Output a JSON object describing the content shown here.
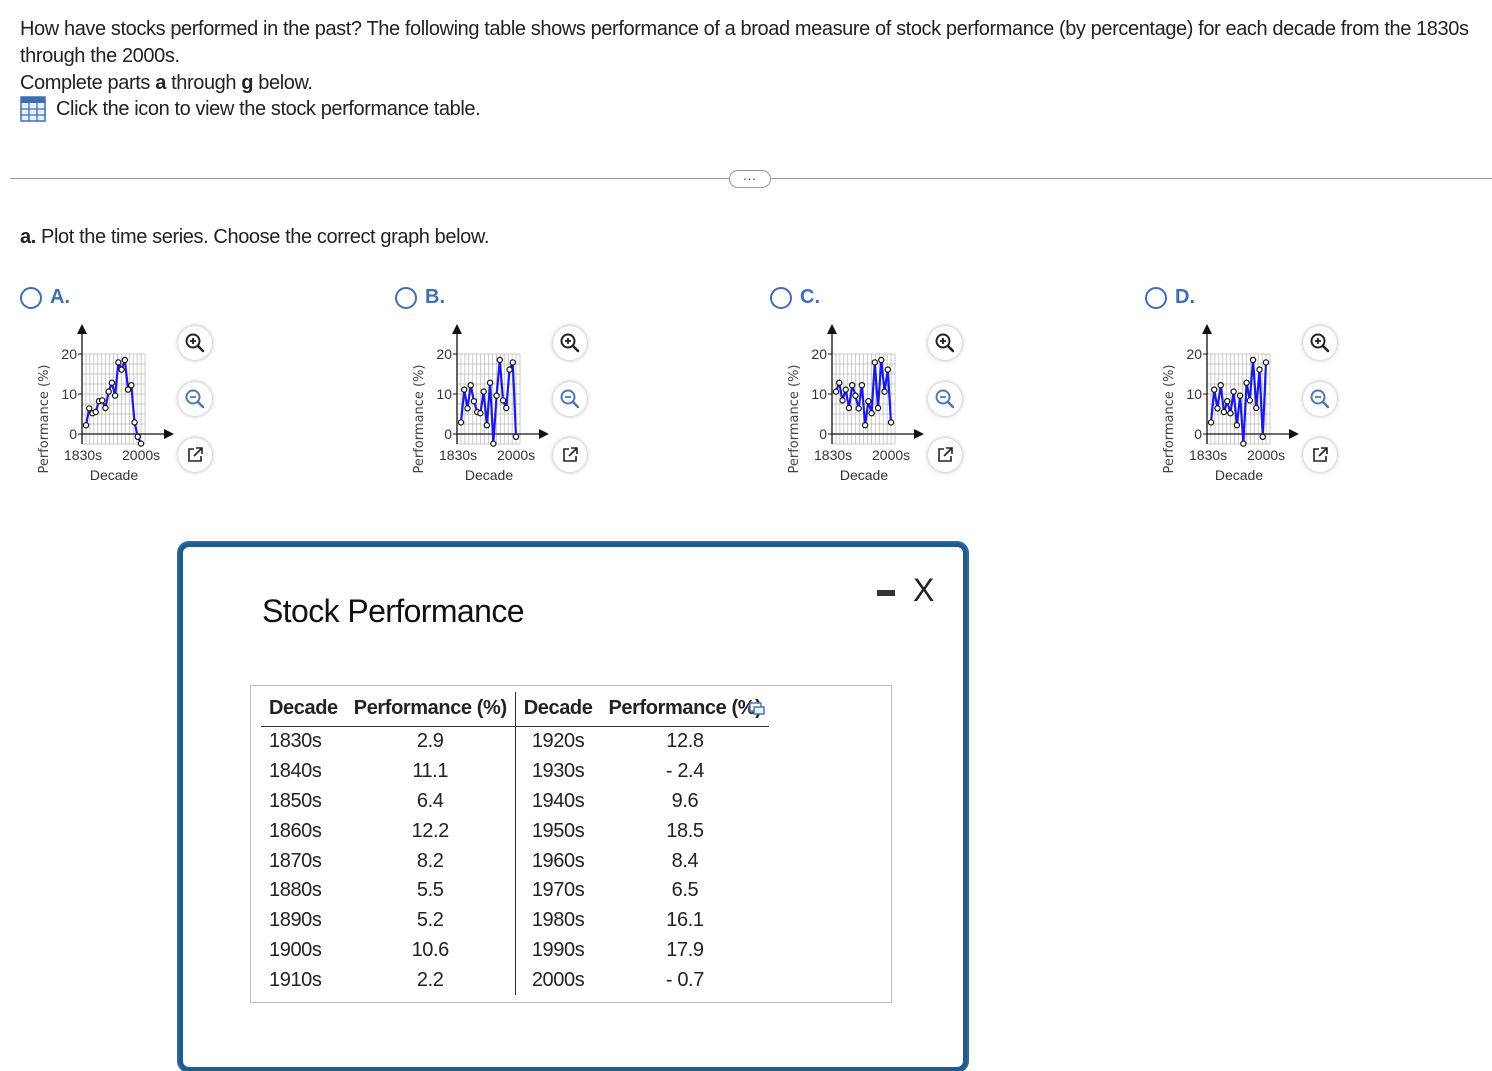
{
  "question": {
    "line1": "How have stocks performed in the past? The following table shows performance of a broad measure of stock performance (by percentage) for each decade from the 1830s through the 2000s.",
    "line2_pre": "Complete parts ",
    "line2_a": "a",
    "line2_mid": " through ",
    "line2_g": "g",
    "line2_post": " below."
  },
  "table_link": {
    "icon": "table-grid-icon",
    "text": "Click the icon to view the stock performance table."
  },
  "more_button": "...",
  "part_a": {
    "letter": "a.",
    "text": " Plot the time series. Choose the correct graph below."
  },
  "options": [
    {
      "letter": "A.",
      "ylabel": "Performance (%)",
      "xlabel": "Decade",
      "xtick_start": "1830s",
      "xtick_end": "2000s",
      "ytick_labels": [
        "0",
        "10",
        "20"
      ],
      "values": [
        2.2,
        6.4,
        5.2,
        5.5,
        8.2,
        8.4,
        6.5,
        10.6,
        12.8,
        9.6,
        17.9,
        16.1,
        18.5,
        11.1,
        12.2,
        2.9,
        -0.7,
        -2.4
      ]
    },
    {
      "letter": "B.",
      "ylabel": "Performance (%)",
      "xlabel": "Decade",
      "xtick_start": "1830s",
      "xtick_end": "2000s",
      "ytick_labels": [
        "0",
        "10",
        "20"
      ],
      "values": [
        2.9,
        11.1,
        6.4,
        12.2,
        8.2,
        5.5,
        5.2,
        10.6,
        2.2,
        12.8,
        -2.4,
        9.6,
        18.5,
        8.4,
        6.5,
        16.1,
        17.9,
        -0.7
      ]
    },
    {
      "letter": "C.",
      "ylabel": "Performance (%)",
      "xlabel": "Decade",
      "xtick_start": "1830s",
      "xtick_end": "2000s",
      "ytick_labels": [
        "0",
        "10",
        "20"
      ],
      "values": [
        10.6,
        12.8,
        8.4,
        11.1,
        6.5,
        12.2,
        9.6,
        6.4,
        12.2,
        2.2,
        8.2,
        5.2,
        17.9,
        6.5,
        18.5,
        10.6,
        16.1,
        2.9
      ]
    },
    {
      "letter": "D.",
      "ylabel": "Performance (%)",
      "xlabel": "Decade",
      "xtick_start": "1830s",
      "xtick_end": "2000s",
      "ytick_labels": [
        "0",
        "10",
        "20"
      ],
      "values": [
        2.9,
        11.1,
        6.4,
        12.2,
        5.5,
        8.2,
        5.2,
        10.6,
        2.2,
        9.6,
        -2.4,
        12.8,
        8.4,
        18.5,
        6.5,
        16.1,
        -0.7,
        17.9
      ]
    }
  ],
  "tool_icons": [
    "zoom-in-icon",
    "zoom-out-icon",
    "open-in-new-window-icon"
  ],
  "popup": {
    "title": "Stock Performance",
    "headers": [
      "Decade",
      "Performance (%)",
      "Decade",
      "Performance (%)"
    ],
    "rows": [
      [
        "1830s",
        "2.9",
        "1920s",
        "12.8"
      ],
      [
        "1840s",
        "11.1",
        "1930s",
        "- 2.4"
      ],
      [
        "1850s",
        "6.4",
        "1940s",
        "9.6"
      ],
      [
        "1860s",
        "12.2",
        "1950s",
        "18.5"
      ],
      [
        "1870s",
        "8.2",
        "1960s",
        "8.4"
      ],
      [
        "1880s",
        "5.5",
        "1970s",
        "6.5"
      ],
      [
        "1890s",
        "5.2",
        "1980s",
        "16.1"
      ],
      [
        "1900s",
        "10.6",
        "1990s",
        "17.9"
      ],
      [
        "1910s",
        "2.2",
        "2000s",
        "- 0.7"
      ]
    ],
    "copy_icon": "copy-icon",
    "minimize_icon": "minimize-icon",
    "close_icon": "close-icon",
    "close_glyph": "X"
  },
  "colors": {
    "line": "#1a1ae6",
    "accent": "#3e6fb3",
    "popup_border": "#1f5b8e"
  }
}
